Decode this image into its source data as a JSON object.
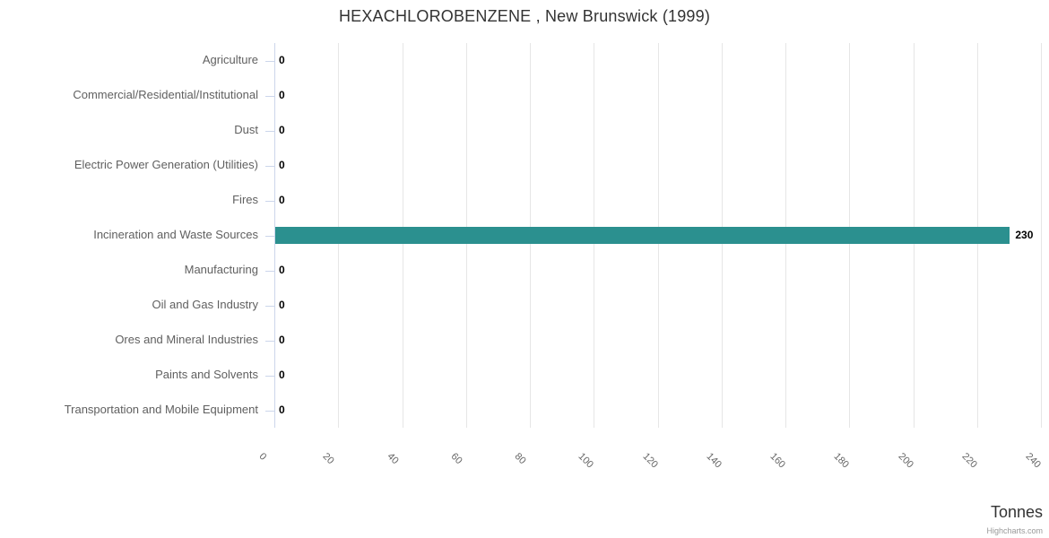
{
  "credits": "Highcharts.com",
  "chart_data": {
    "type": "bar",
    "orientation": "horizontal",
    "title": "HEXACHLOROBENZENE , New Brunswick (1999)",
    "categories": [
      "Agriculture",
      "Commercial/Residential/Institutional",
      "Dust",
      "Electric Power Generation (Utilities)",
      "Fires",
      "Incineration and Waste Sources",
      "Manufacturing",
      "Oil and Gas Industry",
      "Ores and Mineral Industries",
      "Paints and Solvents",
      "Transportation and Mobile Equipment"
    ],
    "values": [
      0,
      0,
      0,
      0,
      0,
      230,
      0,
      0,
      0,
      0,
      0
    ],
    "data_labels": [
      "0",
      "0",
      "0",
      "0",
      "0",
      "230",
      "0",
      "0",
      "0",
      "0",
      "0"
    ],
    "xlabel": "Tonnes",
    "xlim": [
      0,
      240
    ],
    "x_tick_interval": 20,
    "x_tick_labels": [
      "0",
      "20",
      "40",
      "60",
      "80",
      "100",
      "120",
      "140",
      "160",
      "180",
      "200",
      "220",
      "240"
    ],
    "grid": true,
    "legend": "none",
    "colors": {
      "bar": "#2b908f",
      "grid": "#e6e6e6",
      "axis_line": "#ccd6eb",
      "category_label": "#606060",
      "tick_label": "#666666",
      "data_label": "#000000",
      "title": "#333333",
      "credits": "#999999"
    }
  }
}
